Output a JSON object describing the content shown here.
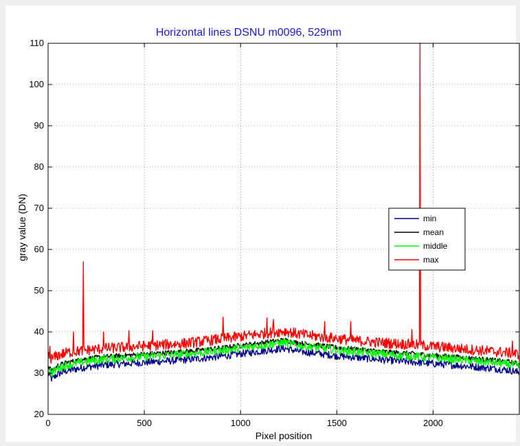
{
  "chart_data": {
    "type": "line",
    "title": "Horizontal lines DSNU m0096, 529nm",
    "xlabel": "Pixel position",
    "ylabel": "gray value (DN)",
    "xlim": [
      0,
      2448
    ],
    "ylim": [
      20,
      110
    ],
    "xticks": [
      0,
      500,
      1000,
      1500,
      2000
    ],
    "yticks": [
      20,
      30,
      40,
      50,
      60,
      70,
      80,
      90,
      100,
      110
    ],
    "grid": true,
    "legend_position": "right-center",
    "series": [
      {
        "name": "min",
        "color": "#00008b",
        "x": [
          0,
          20,
          50,
          100,
          200,
          300,
          400,
          500,
          600,
          700,
          800,
          900,
          1000,
          1100,
          1200,
          1230,
          1300,
          1400,
          1500,
          1600,
          1700,
          1800,
          1900,
          2000,
          2100,
          2200,
          2300,
          2400,
          2448
        ],
        "y": [
          30.0,
          28.5,
          29.8,
          30.6,
          31.5,
          32.0,
          32.3,
          32.6,
          32.9,
          33.2,
          33.6,
          34.1,
          34.7,
          35.3,
          35.9,
          36.0,
          35.3,
          34.8,
          34.2,
          33.8,
          33.4,
          33.0,
          32.7,
          32.3,
          32.0,
          31.6,
          31.2,
          30.7,
          30.2
        ],
        "noise": 0.9
      },
      {
        "name": "mean",
        "color": "#000000",
        "x": [
          0,
          20,
          50,
          100,
          200,
          300,
          400,
          500,
          600,
          700,
          800,
          900,
          1000,
          1100,
          1200,
          1230,
          1300,
          1400,
          1500,
          1600,
          1700,
          1800,
          1900,
          2000,
          2100,
          2200,
          2300,
          2400,
          2448
        ],
        "y": [
          31.8,
          30.5,
          31.8,
          32.6,
          33.5,
          34.0,
          34.3,
          34.6,
          34.9,
          35.2,
          35.6,
          36.1,
          36.7,
          37.3,
          37.9,
          38.0,
          37.3,
          36.8,
          36.2,
          35.8,
          35.4,
          35.0,
          34.7,
          34.3,
          34.0,
          33.6,
          33.2,
          32.7,
          32.2
        ],
        "noise": 0.6
      },
      {
        "name": "middle",
        "color": "#00ff00",
        "x": [
          0,
          20,
          50,
          100,
          200,
          300,
          400,
          500,
          600,
          700,
          800,
          900,
          1000,
          1100,
          1200,
          1230,
          1300,
          1400,
          1500,
          1600,
          1700,
          1800,
          1900,
          2000,
          2100,
          2200,
          2300,
          2400,
          2448
        ],
        "y": [
          31.0,
          30.0,
          31.2,
          32.0,
          32.9,
          33.4,
          33.7,
          34.0,
          34.3,
          34.6,
          35.0,
          35.5,
          36.1,
          36.7,
          37.3,
          37.4,
          36.7,
          36.2,
          35.6,
          35.2,
          34.8,
          34.4,
          34.1,
          33.7,
          33.4,
          33.0,
          32.6,
          32.1,
          31.6
        ],
        "noise": 1.0
      },
      {
        "name": "max",
        "color": "#ff0000",
        "x": [
          0,
          20,
          50,
          100,
          200,
          300,
          400,
          500,
          600,
          700,
          800,
          900,
          1000,
          1100,
          1200,
          1230,
          1300,
          1400,
          1500,
          1600,
          1700,
          1800,
          1900,
          2000,
          2100,
          2200,
          2300,
          2400,
          2448
        ],
        "y": [
          34.2,
          33.5,
          34.3,
          35.0,
          35.6,
          36.0,
          36.3,
          36.6,
          36.9,
          37.2,
          37.7,
          38.3,
          38.9,
          39.5,
          40.1,
          40.2,
          39.5,
          38.9,
          38.4,
          37.9,
          37.5,
          37.2,
          36.9,
          36.5,
          36.1,
          35.7,
          35.3,
          34.9,
          34.5
        ],
        "noise": 1.3,
        "spikes": [
          {
            "x": 10,
            "y": 36.5
          },
          {
            "x": 133,
            "y": 40.0
          },
          {
            "x": 183,
            "y": 57.0
          },
          {
            "x": 288,
            "y": 40.0
          },
          {
            "x": 419,
            "y": 40.3
          },
          {
            "x": 543,
            "y": 40.3
          },
          {
            "x": 910,
            "y": 43.6
          },
          {
            "x": 1136,
            "y": 43.4
          },
          {
            "x": 1171,
            "y": 43.0
          },
          {
            "x": 1436,
            "y": 42.5
          },
          {
            "x": 1572,
            "y": 42.5
          },
          {
            "x": 1890,
            "y": 40.6
          },
          {
            "x": 1933,
            "y": 110.0
          },
          {
            "x": 2413,
            "y": 37.8
          }
        ]
      }
    ]
  }
}
